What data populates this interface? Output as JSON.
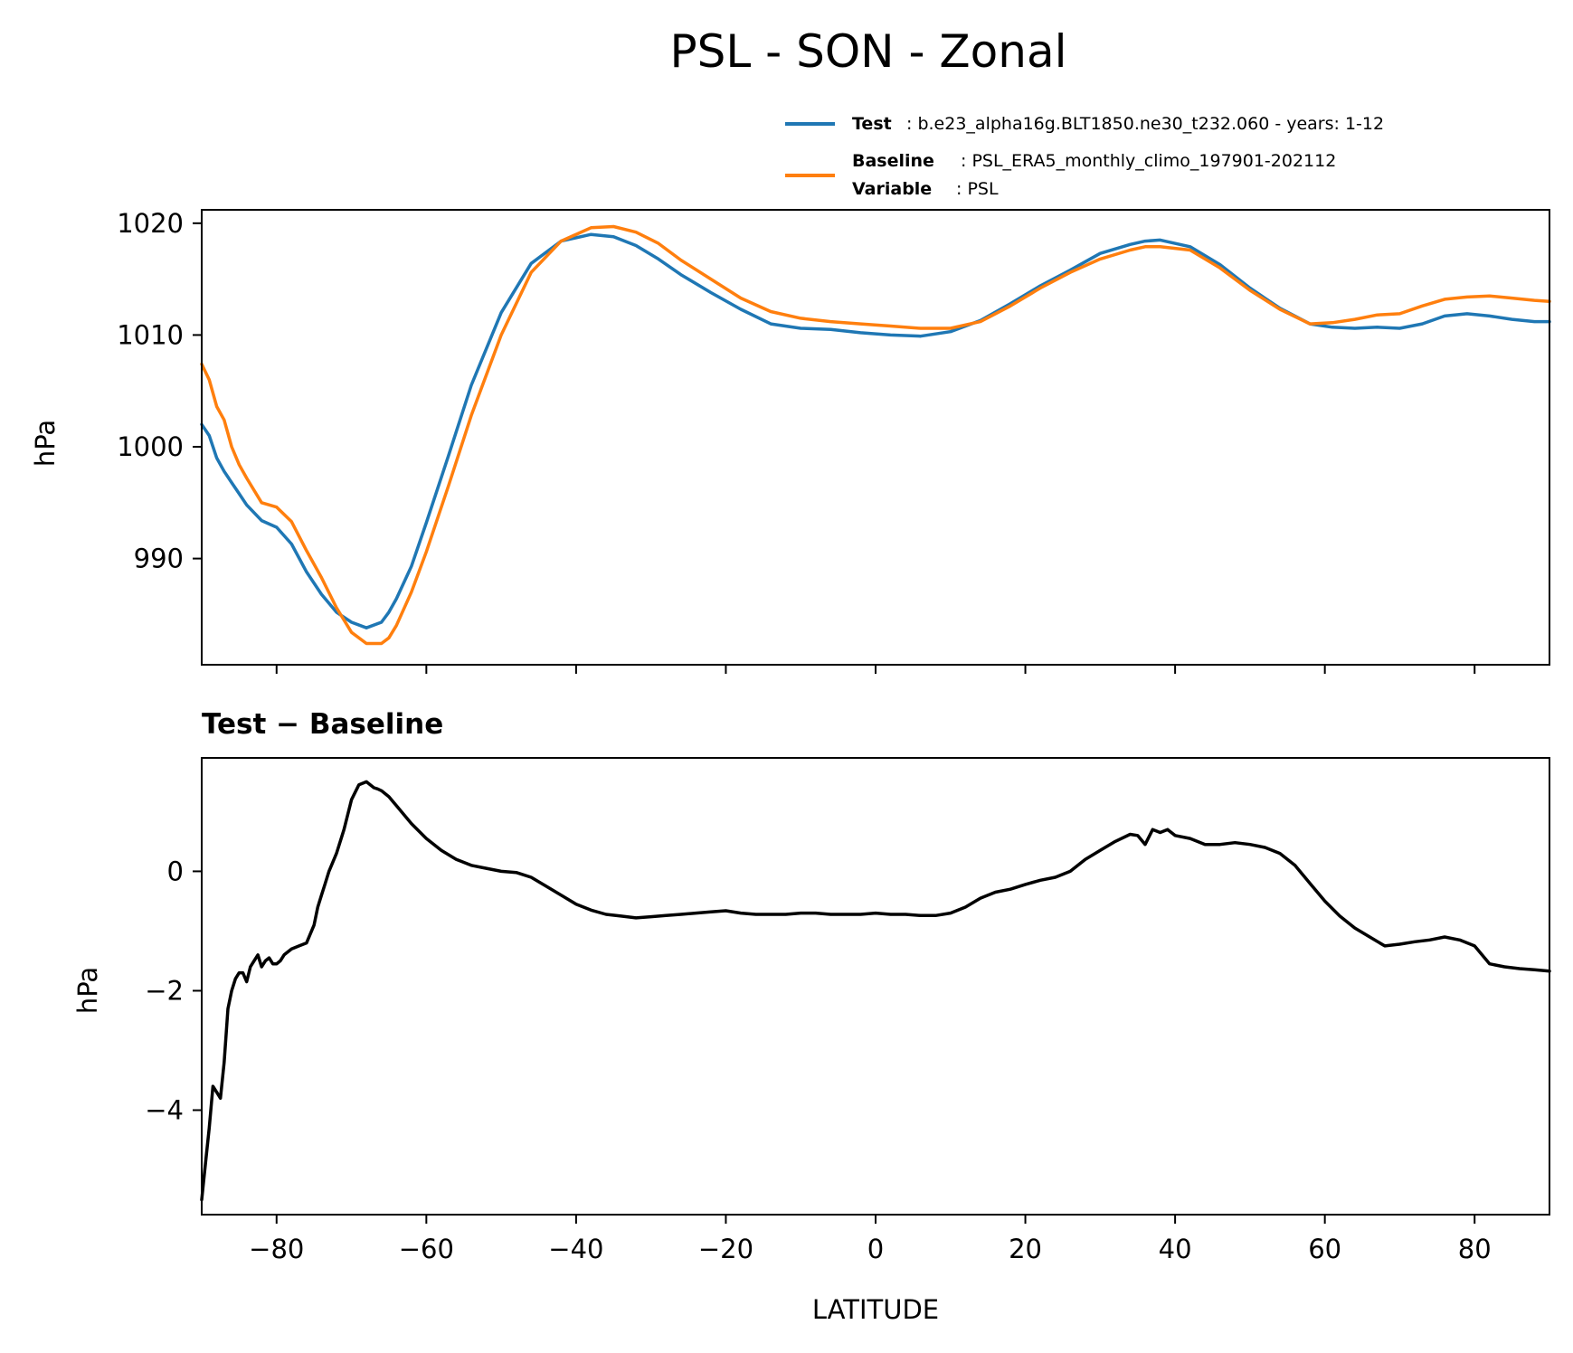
{
  "chart_data": [
    {
      "type": "line",
      "title": "PSL - SON - Zonal",
      "xlabel": "",
      "ylabel": "hPa",
      "xlim": [
        -90,
        90
      ],
      "ylim": [
        980.5,
        1021.2
      ],
      "xticks": [
        -80,
        -60,
        -40,
        -20,
        0,
        20,
        40,
        60,
        80
      ],
      "yticks": [
        990,
        1000,
        1010,
        1020
      ],
      "yticklabels": [
        "990",
        "1000",
        "1010",
        "1020"
      ],
      "grid": false,
      "legend_placement": "upper-right, above plot",
      "legend": [
        {
          "key": "Test",
          "value": "b.e23_alpha16g.BLT1850.ne30_t232.060 - years: 1-12",
          "color": "#1f77b4"
        },
        {
          "key": "Baseline",
          "value": "PSL_ERA5_monthly_climo_197901-202112",
          "key2": "Variable",
          "value2": "PSL",
          "color": "#ff7f0e"
        }
      ],
      "x": [
        -90,
        -89,
        -88,
        -87,
        -86,
        -85,
        -84,
        -82,
        -80,
        -78,
        -76,
        -74,
        -72,
        -70,
        -68,
        -66,
        -65,
        -64,
        -62,
        -60,
        -57,
        -54,
        -50,
        -46,
        -42,
        -38,
        -35,
        -32,
        -29,
        -26,
        -22,
        -18,
        -14,
        -10,
        -6,
        -2,
        2,
        6,
        10,
        14,
        18,
        22,
        26,
        30,
        34,
        36,
        38,
        42,
        46,
        50,
        54,
        58,
        61,
        64,
        67,
        70,
        73,
        76,
        79,
        82,
        85,
        88,
        90
      ],
      "series": [
        {
          "name": "Test",
          "color": "#1f77b4",
          "values": [
            1002.0,
            1001.0,
            999.0,
            997.8,
            996.8,
            995.8,
            994.8,
            993.4,
            992.8,
            991.3,
            988.8,
            986.8,
            985.2,
            984.3,
            983.8,
            984.3,
            985.2,
            986.4,
            989.3,
            993.2,
            999.3,
            1005.5,
            1012.0,
            1016.4,
            1018.4,
            1019.0,
            1018.8,
            1018.0,
            1016.8,
            1015.4,
            1013.8,
            1012.3,
            1011.0,
            1010.6,
            1010.5,
            1010.2,
            1010.0,
            1009.9,
            1010.3,
            1011.3,
            1012.8,
            1014.4,
            1015.8,
            1017.3,
            1018.1,
            1018.4,
            1018.5,
            1017.9,
            1016.3,
            1014.2,
            1012.4,
            1011.0,
            1010.7,
            1010.6,
            1010.7,
            1010.6,
            1011.0,
            1011.7,
            1011.9,
            1011.7,
            1011.4,
            1011.2,
            1011.2
          ]
        },
        {
          "name": "Baseline",
          "color": "#ff7f0e",
          "values": [
            1007.4,
            1006.0,
            1003.6,
            1002.4,
            1000.0,
            998.4,
            997.2,
            995.0,
            994.6,
            993.3,
            990.7,
            988.3,
            985.6,
            983.4,
            982.4,
            982.4,
            982.9,
            984.0,
            987.0,
            990.6,
            996.6,
            1002.8,
            1010.0,
            1015.6,
            1018.4,
            1019.6,
            1019.7,
            1019.2,
            1018.2,
            1016.7,
            1015.0,
            1013.3,
            1012.1,
            1011.5,
            1011.2,
            1011.0,
            1010.8,
            1010.6,
            1010.6,
            1011.2,
            1012.6,
            1014.2,
            1015.6,
            1016.8,
            1017.6,
            1017.9,
            1017.9,
            1017.6,
            1016.0,
            1014.0,
            1012.3,
            1011.0,
            1011.1,
            1011.4,
            1011.8,
            1011.9,
            1012.6,
            1013.2,
            1013.4,
            1013.5,
            1013.3,
            1013.1,
            1013.0
          ]
        }
      ]
    },
    {
      "type": "line",
      "title": "Test − Baseline",
      "xlabel": "LATITUDE",
      "ylabel": "hPa",
      "xlim": [
        -90,
        90
      ],
      "ylim": [
        -5.75,
        1.9
      ],
      "xticks": [
        -80,
        -60,
        -40,
        -20,
        0,
        20,
        40,
        60,
        80
      ],
      "xticklabels": [
        "−80",
        "−60",
        "−40",
        "−20",
        "0",
        "20",
        "40",
        "60",
        "80"
      ],
      "yticks": [
        -4,
        -2,
        0
      ],
      "yticklabels": [
        "−4",
        "−2",
        "0"
      ],
      "grid": false,
      "x": [
        -90,
        -89.5,
        -89,
        -88.5,
        -88,
        -87.5,
        -87,
        -86.5,
        -86,
        -85.5,
        -85,
        -84.5,
        -84,
        -83.5,
        -83,
        -82.5,
        -82,
        -81.5,
        -81,
        -80.5,
        -80,
        -79.5,
        -79,
        -78.5,
        -78,
        -77,
        -76,
        -75,
        -74.5,
        -74,
        -73.5,
        -73,
        -72,
        -71,
        -70,
        -69,
        -68,
        -67.5,
        -67,
        -66.5,
        -66,
        -65,
        -64,
        -62,
        -60,
        -58,
        -56,
        -54,
        -52,
        -50,
        -48,
        -46,
        -44,
        -42,
        -40,
        -38,
        -36,
        -34,
        -32,
        -30,
        -28,
        -26,
        -24,
        -22,
        -20,
        -18,
        -16,
        -14,
        -12,
        -10,
        -8,
        -6,
        -4,
        -2,
        0,
        2,
        4,
        6,
        8,
        10,
        12,
        14,
        16,
        18,
        20,
        22,
        24,
        26,
        28,
        30,
        32,
        34,
        35,
        36,
        37,
        38,
        39,
        40,
        42,
        44,
        46,
        48,
        50,
        52,
        54,
        56,
        58,
        60,
        62,
        64,
        66,
        68,
        70,
        72,
        74,
        76,
        78,
        80,
        82,
        84,
        86,
        88,
        90
      ],
      "series": [
        {
          "name": "",
          "color": "#000000",
          "values": [
            -5.5,
            -4.9,
            -4.3,
            -3.6,
            -3.7,
            -3.8,
            -3.2,
            -2.3,
            -2.0,
            -1.8,
            -1.7,
            -1.7,
            -1.85,
            -1.6,
            -1.5,
            -1.4,
            -1.6,
            -1.5,
            -1.45,
            -1.55,
            -1.55,
            -1.5,
            -1.4,
            -1.35,
            -1.3,
            -1.25,
            -1.2,
            -0.9,
            -0.6,
            -0.4,
            -0.2,
            0.0,
            0.3,
            0.7,
            1.2,
            1.45,
            1.5,
            1.45,
            1.4,
            1.38,
            1.35,
            1.25,
            1.1,
            0.8,
            0.55,
            0.35,
            0.2,
            0.1,
            0.05,
            0.0,
            -0.02,
            -0.1,
            -0.25,
            -0.4,
            -0.55,
            -0.65,
            -0.72,
            -0.75,
            -0.78,
            -0.76,
            -0.74,
            -0.72,
            -0.7,
            -0.68,
            -0.66,
            -0.7,
            -0.72,
            -0.72,
            -0.72,
            -0.7,
            -0.7,
            -0.72,
            -0.72,
            -0.72,
            -0.7,
            -0.72,
            -0.72,
            -0.74,
            -0.74,
            -0.7,
            -0.6,
            -0.45,
            -0.35,
            -0.3,
            -0.22,
            -0.15,
            -0.1,
            0.0,
            0.2,
            0.35,
            0.5,
            0.62,
            0.6,
            0.45,
            0.7,
            0.65,
            0.7,
            0.6,
            0.55,
            0.45,
            0.45,
            0.48,
            0.45,
            0.4,
            0.3,
            0.1,
            -0.2,
            -0.5,
            -0.75,
            -0.95,
            -1.1,
            -1.25,
            -1.22,
            -1.18,
            -1.15,
            -1.1,
            -1.15,
            -1.25,
            -1.55,
            -1.6,
            -1.63,
            -1.65,
            -1.67
          ]
        }
      ]
    }
  ]
}
